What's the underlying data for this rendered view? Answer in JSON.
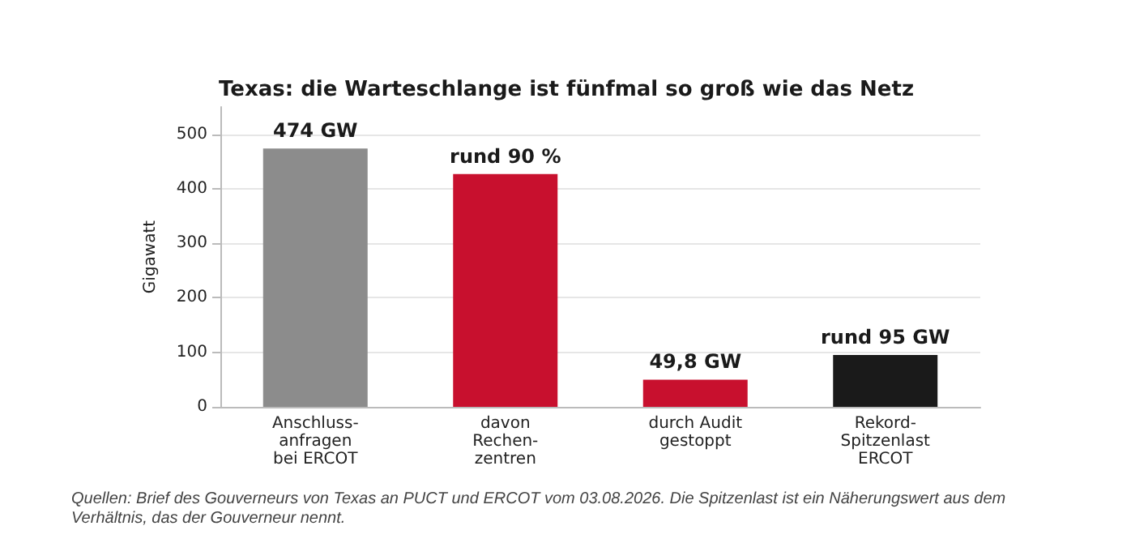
{
  "chart_data": {
    "type": "bar",
    "title": "Texas: die Warteschlange ist fünfmal so groß wie das Netz",
    "ylabel": "Gigawatt",
    "categories": [
      "Anschluss-\nanfragen\nbei ERCOT",
      "davon\nRechen-\nzentren",
      "durch Audit\ngestoppt",
      "Rekord-\nSpitzenlast\nERCOT"
    ],
    "values": [
      474,
      427,
      49.8,
      95
    ],
    "colors": [
      "#8c8c8c",
      "#c8102e",
      "#c8102e",
      "#1a1a1a"
    ],
    "value_labels": [
      "474 GW",
      "rund 90 %",
      "49,8 GW",
      "rund 95 GW"
    ],
    "ylim": [
      0,
      550
    ],
    "yticks": [
      0,
      100,
      200,
      300,
      400,
      500
    ],
    "grid": "y",
    "annotations": [
      "Quellen: Brief des Gouverneurs von Texas an PUCT und ERCOT vom 03.08.2026. Die Spitzenlast ist ein Näherungswert aus dem Verhältnis, das der Gouverneur nennt."
    ]
  }
}
